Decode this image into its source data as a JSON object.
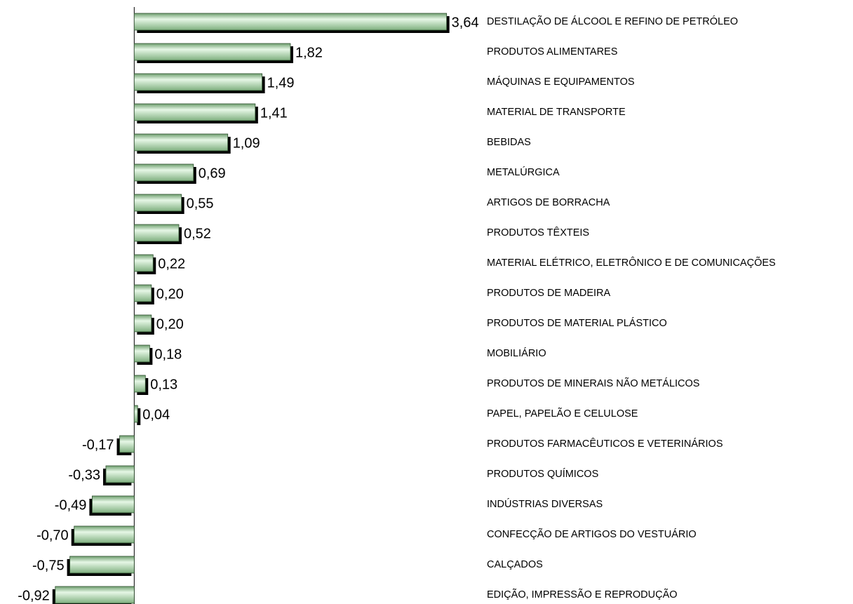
{
  "chart_data": {
    "type": "barh",
    "categories": [
      "DESTILAÇÃO DE ÁLCOOL E REFINO DE PETRÓLEO",
      "PRODUTOS ALIMENTARES",
      "MÁQUINAS E EQUIPAMENTOS",
      "MATERIAL DE TRANSPORTE",
      "BEBIDAS",
      "METALÚRGICA",
      "ARTIGOS DE BORRACHA",
      "PRODUTOS TÊXTEIS",
      "MATERIAL ELÉTRICO, ELETRÔNICO E DE COMUNICAÇÕES",
      "PRODUTOS DE MADEIRA",
      "PRODUTOS DE MATERIAL PLÁSTICO",
      "MOBILIÁRIO",
      "PRODUTOS DE MINERAIS NÃO METÁLICOS",
      "PAPEL, PAPELÃO E CELULOSE",
      "PRODUTOS FARMACÊUTICOS E VETERINÁRIOS",
      "PRODUTOS QUÍMICOS",
      "INDÚSTRIAS DIVERSAS",
      "CONFECÇÃO DE ARTIGOS DO VESTUÁRIO",
      "CALÇADOS",
      "EDIÇÃO, IMPRESSÃO E REPRODUÇÃO"
    ],
    "values": [
      3.64,
      1.82,
      1.49,
      1.41,
      1.09,
      0.69,
      0.55,
      0.52,
      0.22,
      0.2,
      0.2,
      0.18,
      0.13,
      0.04,
      -0.17,
      -0.33,
      -0.49,
      -0.7,
      -0.75,
      -0.92
    ],
    "value_labels": [
      "3,64",
      "1,82",
      "1,49",
      "1,41",
      "1,09",
      "0,69",
      "0,55",
      "0,52",
      "0,22",
      "0,20",
      "0,20",
      "0,18",
      "0,13",
      "0,04",
      "-0,17",
      "-0,33",
      "-0,49",
      "-0,70",
      "-0,75",
      "-0,92"
    ],
    "color": "#a8dca8",
    "xlim": [
      -1,
      3.7
    ]
  }
}
